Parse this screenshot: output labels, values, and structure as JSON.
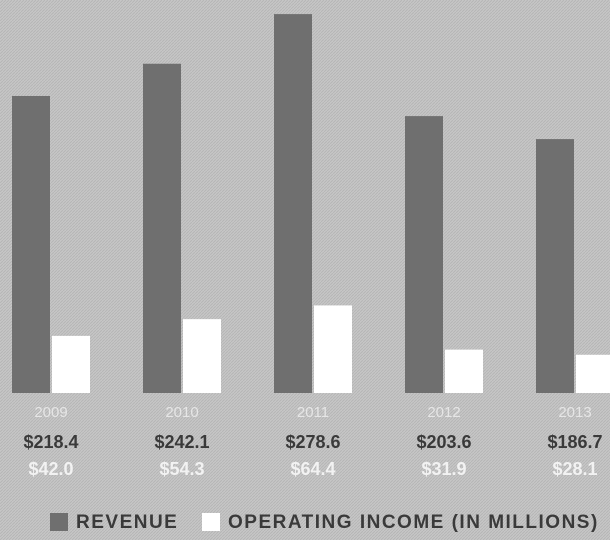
{
  "chart_data": {
    "type": "bar",
    "categories": [
      "2009",
      "2010",
      "2011",
      "2012",
      "2013"
    ],
    "series": [
      {
        "name": "REVENUE",
        "color": "#6f6f6f",
        "values": [
          218.4,
          242.1,
          278.6,
          203.6,
          186.7
        ],
        "value_labels": [
          "$218.4",
          "$242.1",
          "$278.6",
          "$203.6",
          "$186.7"
        ]
      },
      {
        "name": "OPERATING INCOME (IN MILLIONS)",
        "color": "#ffffff",
        "values": [
          42.0,
          54.3,
          64.4,
          31.9,
          28.1
        ],
        "value_labels": [
          "$42.0",
          "$54.3",
          "$64.4",
          "$31.9",
          "$28.1"
        ]
      }
    ]
  }
}
